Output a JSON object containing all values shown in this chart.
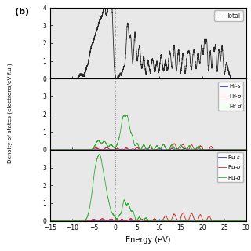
{
  "x_min": -15,
  "x_max": 30,
  "panel_label": "(b)",
  "xlabel": "Energy (eV)",
  "ylabel": "Density of states (electrons/eV f.u.)",
  "total_color": "#2a2a2a",
  "hf_s_color": "#3333cc",
  "hf_p_color": "#cc3333",
  "hf_d_color": "#33aa33",
  "ru_s_color": "#3333cc",
  "ru_p_color": "#cc3333",
  "ru_d_color": "#33aa33",
  "bg_color": "#e8e8e8"
}
